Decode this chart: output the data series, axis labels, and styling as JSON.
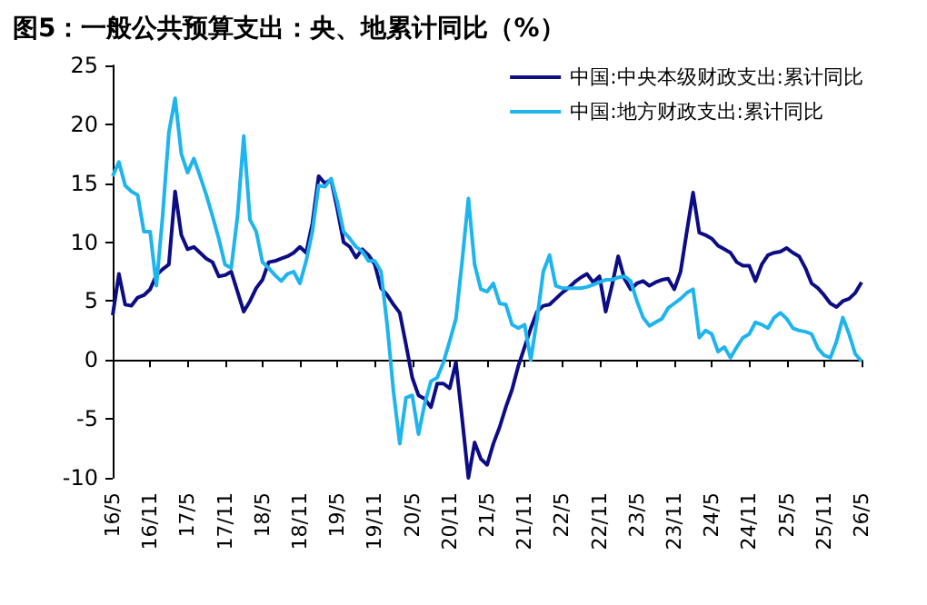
{
  "chart_data": {
    "type": "line",
    "title": "图5：一般公共预算支出：央、地累计同比（%）",
    "categories": [
      "16/5",
      null,
      null,
      null,
      null,
      null,
      "16/11",
      null,
      null,
      null,
      null,
      null,
      "17/5",
      null,
      null,
      null,
      null,
      null,
      "17/11",
      null,
      null,
      null,
      null,
      null,
      "18/5",
      null,
      null,
      null,
      null,
      null,
      "18/11",
      null,
      null,
      null,
      null,
      null,
      "19/5",
      null,
      null,
      null,
      null,
      null,
      "19/11",
      null,
      null,
      null,
      null,
      null,
      "20/5",
      null,
      null,
      null,
      null,
      null,
      "20/11",
      null,
      null,
      null,
      null,
      null,
      "21/5",
      null,
      null,
      null,
      null,
      null,
      "21/11",
      null,
      null,
      null,
      null,
      null,
      "22/5",
      null,
      null,
      null,
      null,
      null,
      "22/11",
      null,
      null,
      null,
      null,
      null,
      "23/5",
      null,
      null,
      null,
      null,
      null,
      "23/11",
      null,
      null,
      null,
      null,
      null,
      "24/5",
      null,
      null,
      null,
      null,
      null,
      "24/11",
      null,
      null,
      null,
      null,
      null,
      "25/5",
      null,
      null,
      null,
      null,
      null,
      "25/11",
      null,
      null,
      null,
      null,
      null,
      "26/5"
    ],
    "series": [
      {
        "name": "中国:中央本级财政支出:累计同比",
        "color": "#0c0c85",
        "values": [
          3.8,
          7.3,
          4.7,
          4.6,
          5.3,
          5.5,
          6.0,
          7.2,
          7.7,
          8.1,
          14.3,
          10.6,
          9.4,
          9.6,
          9.1,
          8.6,
          8.3,
          7.1,
          7.2,
          7.5,
          5.8,
          4.1,
          5.0,
          6.1,
          6.8,
          8.3,
          8.4,
          8.6,
          8.8,
          9.1,
          9.6,
          9.1,
          11.6,
          15.6,
          15.0,
          15.3,
          12.8,
          10.0,
          9.6,
          8.7,
          9.4,
          8.9,
          8.1,
          6.1,
          5.5,
          4.7,
          4.0,
          1.3,
          -1.5,
          -3.0,
          -3.3,
          -4.0,
          -2.0,
          -2.0,
          -2.4,
          -0.2,
          -5.0,
          -10.0,
          -7.0,
          -8.4,
          -8.9,
          -7.1,
          -5.7,
          -4.0,
          -2.5,
          -0.5,
          1.1,
          2.7,
          4.1,
          4.6,
          4.7,
          5.2,
          5.7,
          6.1,
          6.6,
          7.0,
          7.3,
          6.6,
          7.1,
          4.1,
          6.3,
          8.8,
          6.9,
          6.0,
          6.5,
          6.7,
          6.3,
          6.6,
          6.8,
          6.9,
          6.0,
          7.5,
          10.9,
          14.2,
          10.8,
          10.6,
          10.3,
          9.7,
          9.4,
          9.1,
          8.3,
          8.0,
          8.0,
          6.7,
          8.1,
          8.9,
          9.1,
          9.2,
          9.5,
          9.1,
          8.8,
          7.8,
          6.5,
          6.1,
          5.5,
          4.8,
          4.5,
          5.0,
          5.2,
          5.7,
          6.6
        ]
      },
      {
        "name": "中国:地方财政支出:累计同比",
        "color": "#1eb4ee",
        "values": [
          15.6,
          16.8,
          14.8,
          14.3,
          14.0,
          10.9,
          10.9,
          6.3,
          12.2,
          19.3,
          22.2,
          17.5,
          15.9,
          17.1,
          15.6,
          14.0,
          12.2,
          10.3,
          8.1,
          7.8,
          12.2,
          19.0,
          11.9,
          10.9,
          8.3,
          7.8,
          7.2,
          6.7,
          7.3,
          7.5,
          6.5,
          8.4,
          10.9,
          14.8,
          14.7,
          15.4,
          13.4,
          10.9,
          10.3,
          9.6,
          9.2,
          8.4,
          8.4,
          7.5,
          2.9,
          -2.7,
          -7.1,
          -3.2,
          -3.0,
          -6.3,
          -3.7,
          -1.8,
          -1.5,
          -0.2,
          1.6,
          3.5,
          8.4,
          13.7,
          8.1,
          6.0,
          5.8,
          6.5,
          4.8,
          4.7,
          3.0,
          2.7,
          3.0,
          0.0,
          3.5,
          7.5,
          8.9,
          6.3,
          6.1,
          6.1,
          6.1,
          6.1,
          6.2,
          6.4,
          6.6,
          6.8,
          6.8,
          7.0,
          7.1,
          6.7,
          5.0,
          3.6,
          2.9,
          3.2,
          3.5,
          4.4,
          4.8,
          5.2,
          5.7,
          6.0,
          1.9,
          2.5,
          2.2,
          0.7,
          1.1,
          0.2,
          1.1,
          1.9,
          2.2,
          3.2,
          3.0,
          2.7,
          3.6,
          4.0,
          3.5,
          2.7,
          2.5,
          2.4,
          2.2,
          1.0,
          0.4,
          0.2,
          1.6,
          3.6,
          2.2,
          0.5,
          -0.1
        ]
      }
    ],
    "ylim": [
      -10,
      25
    ],
    "yticks": [
      -10,
      -5,
      0,
      5,
      10,
      15,
      20,
      25
    ],
    "legend": "top right",
    "line_style": "solid"
  }
}
